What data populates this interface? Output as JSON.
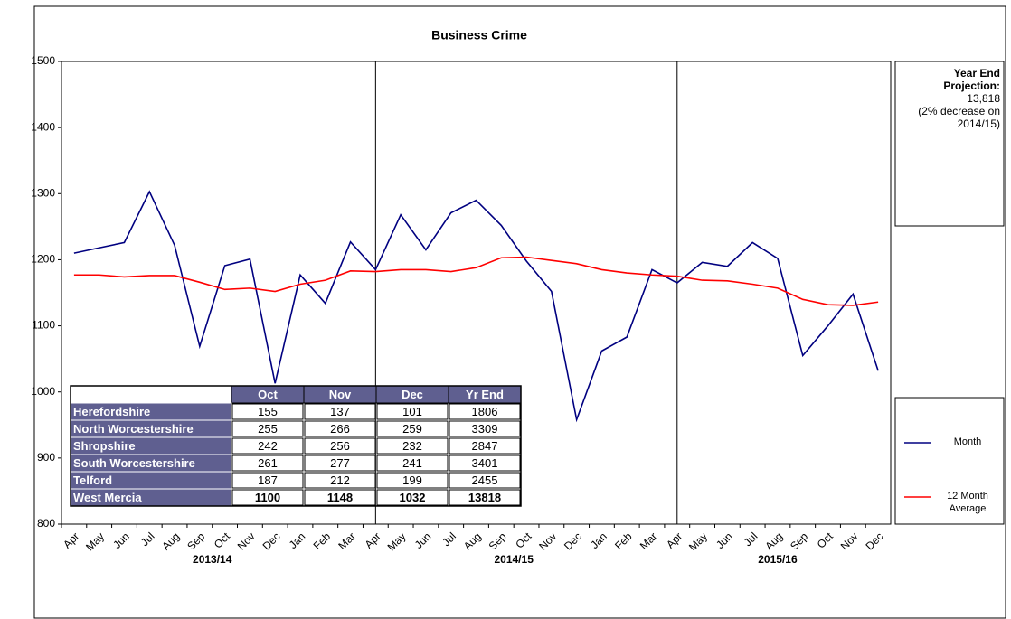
{
  "chart_data": {
    "type": "line",
    "title": "Business Crime",
    "categories": [
      "Apr",
      "May",
      "Jun",
      "Jul",
      "Aug",
      "Sep",
      "Oct",
      "Nov",
      "Dec",
      "Jan",
      "Feb",
      "Mar",
      "Apr",
      "May",
      "Jun",
      "Jul",
      "Aug",
      "Sep",
      "Oct",
      "Nov",
      "Dec",
      "Jan",
      "Feb",
      "Mar",
      "Apr",
      "May",
      "Jun",
      "Jul",
      "Aug",
      "Sep",
      "Oct",
      "Nov",
      "Dec"
    ],
    "periods": [
      "2013/14",
      "2014/15",
      "2015/16"
    ],
    "series": [
      {
        "name": "Month",
        "color": "#000080",
        "values": [
          1210,
          1218,
          1226,
          1303,
          1222,
          1069,
          1191,
          1201,
          1013,
          1177,
          1134,
          1227,
          1185,
          1268,
          1215,
          1271,
          1290,
          1252,
          1198,
          1152,
          958,
          1062,
          1083,
          1185,
          1165,
          1196,
          1190,
          1226,
          1202,
          1055,
          1100,
          1148,
          1032
        ]
      },
      {
        "name": "12 Month Average",
        "color": "#ff0000",
        "values": [
          1177,
          1177,
          1174,
          1176,
          1176,
          1166,
          1155,
          1157,
          1152,
          1163,
          1169,
          1183,
          1182,
          1185,
          1185,
          1182,
          1188,
          1203,
          1204,
          1199,
          1194,
          1185,
          1180,
          1177,
          1175,
          1169,
          1168,
          1163,
          1157,
          1140,
          1132,
          1131,
          1136
        ]
      }
    ],
    "ylim": [
      800,
      1500
    ],
    "yticks": [
      800,
      900,
      1000,
      1100,
      1200,
      1300,
      1400,
      1500
    ],
    "projection": {
      "heading": "Year End Projection:",
      "value": "13,818",
      "note": "(2% decrease on 2014/15)"
    },
    "table": {
      "columns": [
        "Oct",
        "Nov",
        "Dec",
        "Yr End"
      ],
      "rows": [
        {
          "name": "Herefordshire",
          "values": [
            "155",
            "137",
            "101",
            "1806"
          ]
        },
        {
          "name": "North Worcestershire",
          "values": [
            "255",
            "266",
            "259",
            "3309"
          ]
        },
        {
          "name": "Shropshire",
          "values": [
            "242",
            "256",
            "232",
            "2847"
          ]
        },
        {
          "name": "South Worcestershire",
          "values": [
            "261",
            "277",
            "241",
            "3401"
          ]
        },
        {
          "name": "Telford",
          "values": [
            "187",
            "212",
            "199",
            "2455"
          ]
        },
        {
          "name": "West Mercia",
          "values": [
            "1100",
            "1148",
            "1032",
            "13818"
          ]
        }
      ]
    }
  }
}
